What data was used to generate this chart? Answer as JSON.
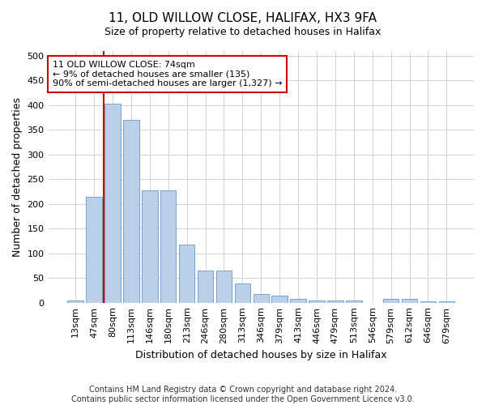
{
  "title_line1": "11, OLD WILLOW CLOSE, HALIFAX, HX3 9FA",
  "title_line2": "Size of property relative to detached houses in Halifax",
  "xlabel": "Distribution of detached houses by size in Halifax",
  "ylabel": "Number of detached properties",
  "categories": [
    "13sqm",
    "47sqm",
    "80sqm",
    "113sqm",
    "146sqm",
    "180sqm",
    "213sqm",
    "246sqm",
    "280sqm",
    "313sqm",
    "346sqm",
    "379sqm",
    "413sqm",
    "446sqm",
    "479sqm",
    "513sqm",
    "546sqm",
    "579sqm",
    "612sqm",
    "646sqm",
    "679sqm"
  ],
  "bar_values": [
    4,
    214,
    403,
    370,
    228,
    228,
    118,
    65,
    65,
    39,
    17,
    14,
    7,
    5,
    5,
    5,
    0,
    8,
    8,
    3,
    3
  ],
  "bar_color": "#bad0e8",
  "bar_edge_color": "#6699cc",
  "grid_color": "#cccccc",
  "vline_color": "#cc0000",
  "annotation_text": "11 OLD WILLOW CLOSE: 74sqm\n← 9% of detached houses are smaller (135)\n90% of semi-detached houses are larger (1,327) →",
  "annotation_box_color": "#ffffff",
  "annotation_box_edge": "#cc0000",
  "ylim": [
    0,
    510
  ],
  "yticks": [
    0,
    50,
    100,
    150,
    200,
    250,
    300,
    350,
    400,
    450,
    500
  ],
  "footer_line1": "Contains HM Land Registry data © Crown copyright and database right 2024.",
  "footer_line2": "Contains public sector information licensed under the Open Government Licence v3.0.",
  "background_color": "#ffffff",
  "title_fontsize": 11,
  "subtitle_fontsize": 9,
  "axis_label_fontsize": 9,
  "tick_fontsize": 8,
  "annotation_fontsize": 8,
  "footer_fontsize": 7
}
